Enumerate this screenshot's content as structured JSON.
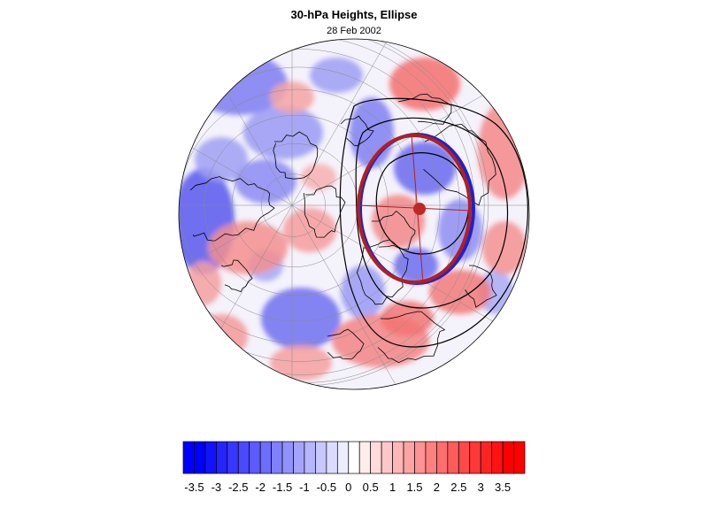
{
  "map": {
    "title": "30-hPa Heights, Ellipse",
    "subtitle": "28 Feb 2002",
    "projection": "polar-orthographic-north",
    "show_coastlines": true,
    "show_graticule": true,
    "ellipse_colors": {
      "outer": "#2020d0",
      "inner": "#b02020",
      "center": "#c02828"
    },
    "contour_color": "#000000"
  },
  "colorbar": {
    "tick_labels": [
      "-3.5",
      "-3",
      "-2.5",
      "-2",
      "-1.5",
      "-1",
      "-0.5",
      "0",
      "0.5",
      "1",
      "1.5",
      "2",
      "2.5",
      "3",
      "3.5"
    ],
    "min": -3.75,
    "max": 3.75,
    "step": 0.25,
    "negative_color": "#0000ff",
    "neutral_color": "#ffffff",
    "positive_color": "#ff0000"
  }
}
